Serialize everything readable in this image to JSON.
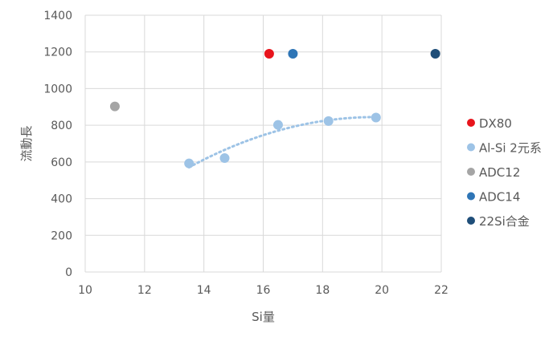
{
  "chart_data": {
    "type": "scatter",
    "title": "",
    "xlabel": "Si量",
    "ylabel": "流動長",
    "xlim": [
      10,
      22
    ],
    "ylim": [
      0,
      1400
    ],
    "x_ticks": [
      10,
      12,
      14,
      16,
      18,
      20,
      22
    ],
    "y_ticks": [
      0,
      200,
      400,
      600,
      800,
      1000,
      1200,
      1400
    ],
    "grid": true,
    "legend_position": "right",
    "series": [
      {
        "name": "DX80",
        "color": "#e8141c",
        "points": [
          [
            16.2,
            1190
          ]
        ]
      },
      {
        "name": "Al-Si 2元系",
        "color": "#9dc3e6",
        "points": [
          [
            13.5,
            592
          ],
          [
            14.7,
            621
          ],
          [
            16.5,
            802
          ],
          [
            18.2,
            823
          ],
          [
            19.8,
            842
          ]
        ]
      },
      {
        "name": "ADC12",
        "color": "#a5a5a5",
        "points": [
          [
            11.0,
            903
          ]
        ]
      },
      {
        "name": "ADC14",
        "color": "#2e75b6",
        "points": [
          [
            17.0,
            1190
          ]
        ]
      },
      {
        "name": "22Si合金",
        "color": "#1f4e79",
        "points": [
          [
            21.8,
            1190
          ]
        ]
      }
    ],
    "trendline": {
      "series": "Al-Si 2元系",
      "style": "dotted",
      "color": "#9dc3e6",
      "x_range": [
        13.5,
        19.8
      ]
    }
  }
}
